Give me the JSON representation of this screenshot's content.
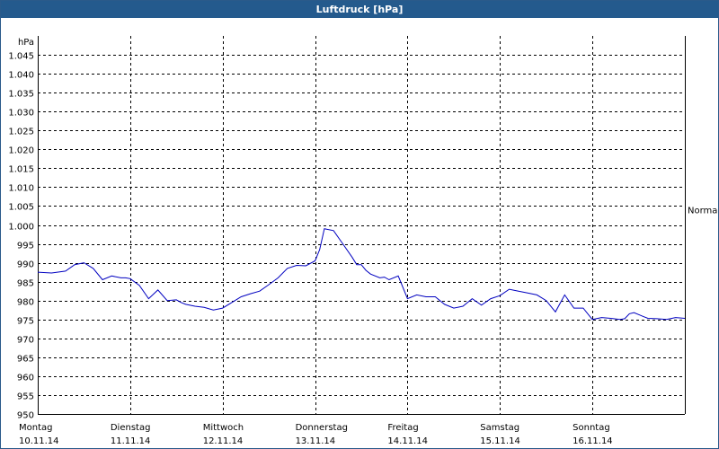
{
  "window": {
    "title": "Luftdruck [hPa]"
  },
  "chart_data": {
    "type": "line",
    "title": "Luftdruck [hPa]",
    "ylabel": "hPa",
    "ylim": [
      950,
      1050
    ],
    "yticks": [
      950,
      955,
      960,
      965,
      970,
      975,
      980,
      985,
      990,
      995,
      1000,
      1005,
      1010,
      1015,
      1020,
      1025,
      1030,
      1035,
      1040,
      1045
    ],
    "ytick_labels": [
      "950",
      "955",
      "960",
      "965",
      "970",
      "975",
      "980",
      "985",
      "990",
      "995",
      "1.000",
      "1.005",
      "1.010",
      "1.015",
      "1.020",
      "1.025",
      "1.030",
      "1.035",
      "1.040",
      "1.045"
    ],
    "xlim": [
      0,
      7
    ],
    "x_days": [
      {
        "day": "Montag",
        "date": "10.11.14"
      },
      {
        "day": "Dienstag",
        "date": "11.11.14"
      },
      {
        "day": "Mittwoch",
        "date": "12.11.14"
      },
      {
        "day": "Donnerstag",
        "date": "13.11.14"
      },
      {
        "day": "Freitag",
        "date": "14.11.14"
      },
      {
        "day": "Samstag",
        "date": "15.11.14"
      },
      {
        "day": "Sonntag",
        "date": "16.11.14"
      }
    ],
    "reference_line": {
      "label": "Normal",
      "value": 1004
    },
    "grid": true,
    "series": [
      {
        "color": "#0000c0",
        "x": [
          0,
          0.15,
          0.3,
          0.4,
          0.5,
          0.6,
          0.7,
          0.8,
          0.9,
          0.95,
          1.0,
          1.1,
          1.2,
          1.3,
          1.4,
          1.5,
          1.55,
          1.6,
          1.7,
          1.8,
          1.9,
          2.0,
          2.1,
          2.2,
          2.3,
          2.4,
          2.5,
          2.6,
          2.7,
          2.8,
          2.9,
          3.0,
          3.05,
          3.1,
          3.2,
          3.3,
          3.4,
          3.45,
          3.5,
          3.55,
          3.6,
          3.7,
          3.75,
          3.8,
          3.9,
          4.0,
          4.1,
          4.2,
          4.3,
          4.4,
          4.5,
          4.6,
          4.7,
          4.8,
          4.9,
          5.0,
          5.1,
          5.2,
          5.3,
          5.4,
          5.5,
          5.6,
          5.7,
          5.8,
          5.9,
          6.0,
          6.1,
          6.2,
          6.3,
          6.35,
          6.4,
          6.45,
          6.5,
          6.55,
          6.6,
          6.7,
          6.8,
          6.9,
          7.0
        ],
        "y": [
          987.5,
          987.3,
          987.8,
          989.5,
          990.0,
          988.5,
          985.5,
          986.5,
          986.0,
          986.0,
          985.8,
          984.0,
          980.5,
          982.8,
          980.0,
          980.2,
          979.5,
          979.0,
          978.5,
          978.2,
          977.5,
          978.0,
          979.5,
          981.0,
          981.8,
          982.5,
          984.2,
          986.0,
          988.5,
          989.3,
          989.2,
          990.5,
          993.5,
          999.0,
          998.5,
          995.0,
          991.5,
          989.5,
          989.5,
          988.0,
          987.0,
          986.0,
          986.2,
          985.5,
          986.5,
          980.5,
          981.5,
          981.0,
          981.0,
          979.0,
          978.0,
          978.5,
          980.5,
          978.8,
          980.5,
          981.3,
          983.0,
          982.5,
          982.0,
          981.5,
          980.0,
          977.0,
          981.5,
          978.0,
          978.0,
          975.0,
          975.5,
          975.3,
          975.0,
          975.2,
          976.5,
          976.8,
          976.3,
          975.8,
          975.3,
          975.2,
          975.0,
          975.5,
          975.3
        ]
      }
    ]
  }
}
